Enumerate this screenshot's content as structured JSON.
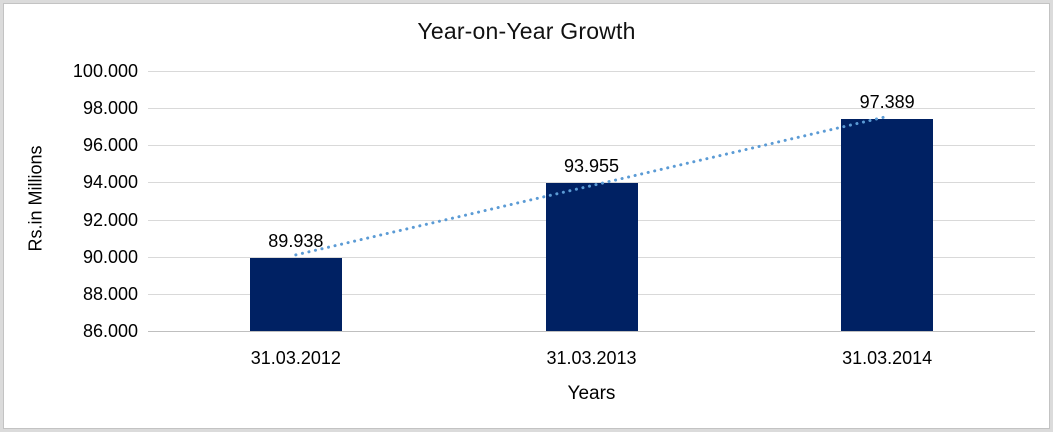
{
  "chart_data": {
    "type": "bar",
    "title": "Year-on-Year Growth",
    "xlabel": "Years",
    "ylabel": "Rs.in Millions",
    "categories": [
      "31.03.2012",
      "31.03.2013",
      "31.03.2014"
    ],
    "values": [
      89.938,
      93.955,
      97.389
    ],
    "data_labels": [
      "89.938",
      "93.955",
      "97.389"
    ],
    "ylim": [
      86,
      100
    ],
    "ytick_step": 2,
    "ytick_labels": [
      "100.000",
      "98.000",
      "96.000",
      "94.000",
      "92.000",
      "90.000",
      "88.000",
      "86.000"
    ],
    "grid": true,
    "legend": "none",
    "trendline": {
      "type": "linear",
      "style": "dotted",
      "color": "#5B9BD5"
    },
    "colors": {
      "bar": "#002163",
      "gridline": "#d9d9d9",
      "axis_line": "#bfbfbf",
      "text": "#000000",
      "frame_outer": "#dbdbdb",
      "frame_inner": "#c3c3c3"
    }
  }
}
